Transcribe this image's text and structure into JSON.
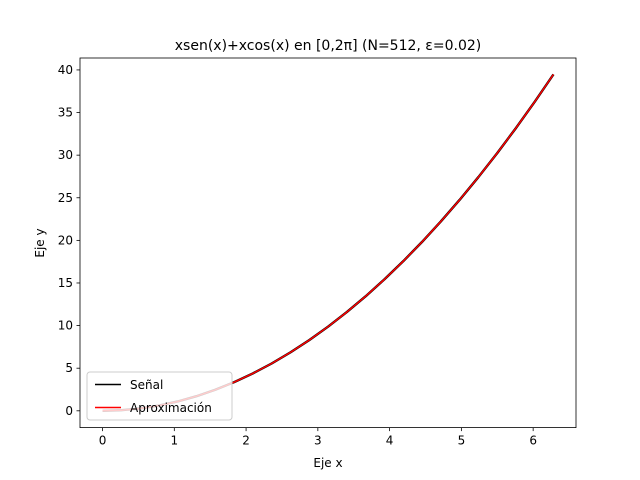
{
  "chart_data": {
    "type": "line",
    "title": "xsen(x)+xcos(x) en [0,2π] (N=512, ε=0.02)",
    "xlabel": "Eje x",
    "ylabel": "Eje y",
    "xlim": [
      -0.314,
      6.597
    ],
    "ylim": [
      -1.97,
      41.4
    ],
    "xticks": [
      0,
      1,
      2,
      3,
      4,
      5,
      6
    ],
    "yticks": [
      0,
      5,
      10,
      15,
      20,
      25,
      30,
      35,
      40
    ],
    "grid": false,
    "legend": {
      "position": "lower-left"
    },
    "series": [
      {
        "name": "Señal",
        "color": "#000000",
        "style": "solid"
      },
      {
        "name": "Aproximación",
        "color": "#ff0000",
        "style": "solid"
      }
    ],
    "x": [
      0,
      0.2618,
      0.5236,
      0.7854,
      1.0472,
      1.309,
      1.5708,
      1.8326,
      2.0944,
      2.3562,
      2.618,
      2.8798,
      3.1416,
      3.4034,
      3.6652,
      3.927,
      4.1888,
      4.4506,
      4.7124,
      4.9742,
      5.236,
      5.4978,
      5.7596,
      6.0214,
      6.2832
    ],
    "y": [
      0.0,
      0.0685,
      0.2742,
      0.6169,
      1.0966,
      1.7135,
      2.4674,
      3.3584,
      4.3865,
      5.5517,
      6.8539,
      8.2932,
      9.8696,
      11.583,
      13.4336,
      15.4213,
      17.546,
      19.8078,
      22.2066,
      24.7425,
      27.4156,
      30.2257,
      33.1728,
      36.2571,
      39.4784
    ]
  }
}
